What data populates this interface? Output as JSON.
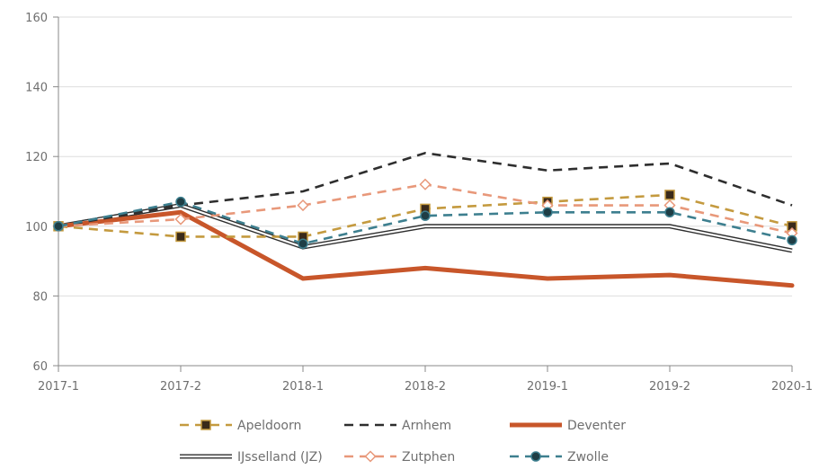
{
  "chart_data": {
    "type": "line",
    "title": "",
    "xlabel": "",
    "ylabel": "",
    "categories": [
      "2017-1",
      "2017-2",
      "2018-1",
      "2018-2",
      "2019-1",
      "2019-2",
      "2020-1"
    ],
    "ylim": [
      60,
      160
    ],
    "yticks": [
      60,
      80,
      100,
      120,
      140,
      160
    ],
    "grid": "horizontal",
    "legend_position": "bottom",
    "series": [
      {
        "name": "Apeldoorn",
        "values": [
          100,
          97,
          97,
          105,
          107,
          109,
          100
        ],
        "color": "#c49a3f",
        "style": "dashed",
        "marker": "square"
      },
      {
        "name": "Arnhem",
        "values": [
          100,
          106,
          110,
          121,
          116,
          118,
          106
        ],
        "color": "#2e2e2e",
        "style": "dashed",
        "marker": "none"
      },
      {
        "name": "Deventer",
        "values": [
          100,
          104,
          85,
          88,
          85,
          86,
          83
        ],
        "color": "#c8562a",
        "style": "solid-thick",
        "marker": "none"
      },
      {
        "name": "IJsselland (JZ)",
        "values": [
          100,
          106,
          94,
          100,
          100,
          100,
          93
        ],
        "color": "#2e2e2e",
        "style": "double",
        "marker": "none"
      },
      {
        "name": "Zutphen",
        "values": [
          100,
          102,
          106,
          112,
          106,
          106,
          98
        ],
        "color": "#e8987a",
        "style": "dashed",
        "marker": "diamond"
      },
      {
        "name": "Zwolle",
        "values": [
          100,
          107,
          95,
          103,
          104,
          104,
          96
        ],
        "color": "#3d7f8f",
        "style": "dashed",
        "marker": "circle"
      }
    ]
  }
}
